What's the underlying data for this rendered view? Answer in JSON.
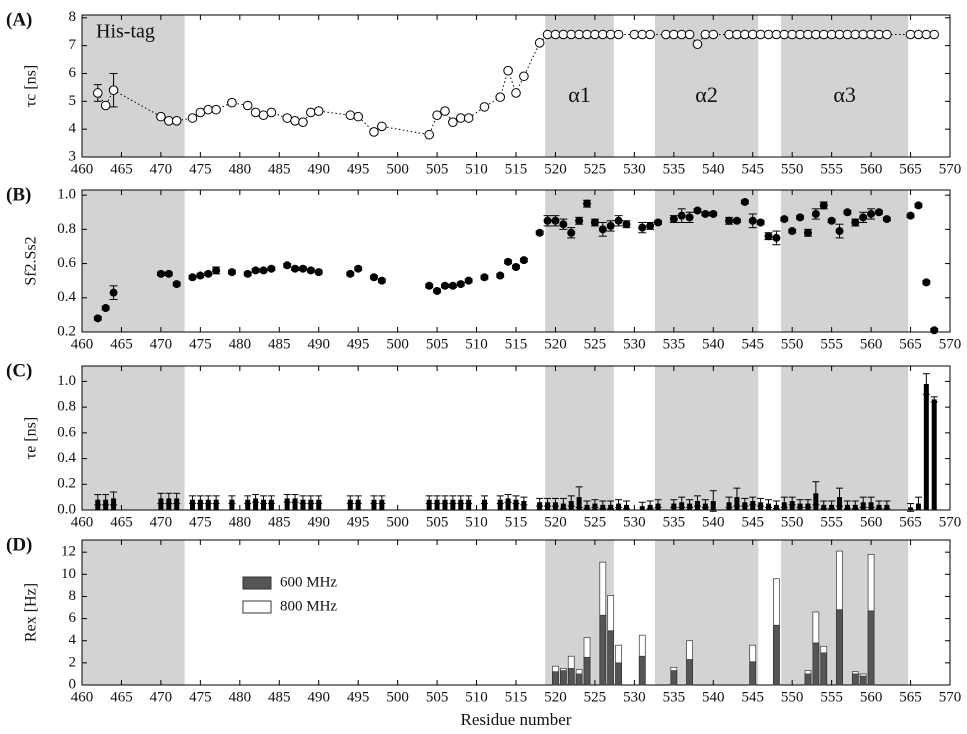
{
  "chart_data": [
    {
      "type": "line",
      "panel_label": "(A)",
      "y_label": "τc [ns]",
      "shaded_regions": [
        [
          460,
          473
        ],
        [
          518.7,
          527.4
        ],
        [
          532.6,
          545.7
        ],
        [
          548.6,
          564.7
        ]
      ],
      "region_labels": [
        "His-tag",
        "α1",
        "α2",
        "α3"
      ],
      "xlim": [
        460,
        570
      ],
      "xticks": [
        460,
        465,
        470,
        475,
        480,
        485,
        490,
        495,
        500,
        505,
        510,
        515,
        520,
        525,
        530,
        535,
        540,
        545,
        550,
        555,
        560,
        565,
        570
      ],
      "ylim": [
        3,
        8.1
      ],
      "yticks": [
        3,
        4,
        5,
        6,
        7,
        8
      ],
      "x": [
        462,
        463,
        464,
        470,
        471,
        472,
        474,
        475,
        476,
        477,
        479,
        481,
        482,
        483,
        484,
        486,
        487,
        488,
        489,
        490,
        494,
        495,
        497,
        498,
        504,
        505,
        506,
        507,
        508,
        509,
        511,
        513,
        514,
        515,
        516,
        518,
        519,
        520,
        521,
        522,
        523,
        524,
        525,
        526,
        527,
        528,
        530,
        531,
        532,
        534,
        535,
        536,
        537,
        538,
        539,
        540,
        542,
        543,
        544,
        545,
        546,
        547,
        548,
        549,
        550,
        551,
        552,
        553,
        554,
        555,
        556,
        557,
        558,
        559,
        560,
        561,
        562,
        565,
        566,
        567,
        568
      ],
      "values": [
        5.3,
        4.85,
        5.4,
        4.45,
        4.3,
        4.3,
        4.4,
        4.6,
        4.7,
        4.7,
        4.95,
        4.85,
        4.6,
        4.5,
        4.6,
        4.4,
        4.3,
        4.25,
        4.6,
        4.65,
        4.5,
        4.45,
        3.9,
        4.1,
        3.8,
        4.5,
        4.65,
        4.25,
        4.4,
        4.4,
        4.8,
        5.15,
        6.1,
        5.3,
        5.9,
        7.1,
        7.4,
        7.4,
        7.4,
        7.4,
        7.4,
        7.4,
        7.4,
        7.4,
        7.4,
        7.4,
        7.4,
        7.4,
        7.4,
        7.4,
        7.4,
        7.4,
        7.4,
        7.05,
        7.4,
        7.4,
        7.4,
        7.4,
        7.4,
        7.4,
        7.4,
        7.4,
        7.4,
        7.4,
        7.4,
        7.4,
        7.4,
        7.4,
        7.4,
        7.4,
        7.4,
        7.4,
        7.4,
        7.4,
        7.4,
        7.4,
        7.4,
        7.4,
        7.4,
        7.4,
        7.4
      ],
      "errors": [
        0.3,
        null,
        0.6,
        null,
        null,
        null,
        null,
        null,
        null,
        null,
        null,
        null,
        null,
        null,
        null,
        null,
        null,
        null,
        null,
        null,
        null,
        null,
        null,
        null,
        null,
        null,
        null,
        null,
        null,
        null,
        null,
        null,
        null,
        null,
        null,
        null,
        null,
        null,
        null,
        null,
        null,
        null,
        null,
        null,
        null,
        null,
        null,
        null,
        null,
        null,
        null,
        null,
        null,
        null,
        null,
        null,
        null,
        null,
        null,
        null,
        null,
        null,
        null,
        null,
        null,
        null,
        null,
        null,
        null,
        null,
        null,
        null,
        null,
        null,
        null,
        null,
        null,
        null,
        null,
        null,
        null
      ]
    },
    {
      "type": "scatter",
      "panel_label": "(B)",
      "y_label": "Sf2.Ss2",
      "shaded_regions": [
        [
          460,
          473
        ],
        [
          518.7,
          527.4
        ],
        [
          532.6,
          545.7
        ],
        [
          548.6,
          564.7
        ]
      ],
      "xlim": [
        460,
        570
      ],
      "xticks": [
        460,
        465,
        470,
        475,
        480,
        485,
        490,
        495,
        500,
        505,
        510,
        515,
        520,
        525,
        530,
        535,
        540,
        545,
        550,
        555,
        560,
        565,
        570
      ],
      "ylim": [
        0.2,
        1.03
      ],
      "yticks": [
        0.2,
        0.4,
        0.6,
        0.8,
        {
          "value": 1,
          "label": "1.0"
        }
      ],
      "x": [
        462,
        463,
        464,
        470,
        471,
        472,
        474,
        475,
        476,
        477,
        479,
        481,
        482,
        483,
        484,
        486,
        487,
        488,
        489,
        490,
        494,
        495,
        497,
        498,
        504,
        505,
        506,
        507,
        508,
        509,
        511,
        513,
        514,
        515,
        516,
        518,
        519,
        520,
        521,
        522,
        523,
        524,
        525,
        526,
        527,
        528,
        529,
        531,
        532,
        533,
        535,
        536,
        537,
        538,
        539,
        540,
        542,
        543,
        544,
        545,
        546,
        547,
        548,
        549,
        550,
        551,
        552,
        553,
        554,
        555,
        556,
        557,
        558,
        559,
        560,
        561,
        562,
        565,
        566,
        567,
        568
      ],
      "values": [
        0.28,
        0.34,
        0.43,
        0.54,
        0.54,
        0.48,
        0.52,
        0.53,
        0.54,
        0.56,
        0.55,
        0.54,
        0.56,
        0.56,
        0.57,
        0.59,
        0.57,
        0.57,
        0.56,
        0.55,
        0.54,
        0.57,
        0.52,
        0.5,
        0.47,
        0.44,
        0.47,
        0.47,
        0.48,
        0.5,
        0.52,
        0.53,
        0.61,
        0.58,
        0.62,
        0.78,
        0.85,
        0.85,
        0.83,
        0.78,
        0.85,
        0.95,
        0.84,
        0.8,
        0.82,
        0.85,
        0.83,
        0.81,
        0.82,
        0.84,
        0.86,
        0.88,
        0.87,
        0.91,
        0.89,
        0.89,
        0.85,
        0.85,
        0.96,
        0.85,
        0.84,
        0.76,
        0.75,
        0.86,
        0.79,
        0.87,
        0.78,
        0.89,
        0.94,
        0.85,
        0.79,
        0.9,
        0.84,
        0.87,
        0.89,
        0.9,
        0.86,
        0.88,
        0.94,
        0.49,
        0.21
      ],
      "errors": [
        0.01,
        0.01,
        0.04,
        0.01,
        0.01,
        0.01,
        0.01,
        0.01,
        0.01,
        0.02,
        0.01,
        0.01,
        0.01,
        0.01,
        0.01,
        0.01,
        0.01,
        0.01,
        0.01,
        0.01,
        0.01,
        0.01,
        0.01,
        0.01,
        0.01,
        0.01,
        0.01,
        0.01,
        0.01,
        0.01,
        0.01,
        0.01,
        0.01,
        0.01,
        0.01,
        0.01,
        0.03,
        0.03,
        0.03,
        0.03,
        0.02,
        0.02,
        0.02,
        0.04,
        0.03,
        0.03,
        0.02,
        0.03,
        0.02,
        0.01,
        0.02,
        0.04,
        0.03,
        0.01,
        0.01,
        0.01,
        0.02,
        0.01,
        0.01,
        0.04,
        0.01,
        0.02,
        0.04,
        0.01,
        0.01,
        0.01,
        0.02,
        0.03,
        0.02,
        0.01,
        0.04,
        0.01,
        0.02,
        0.03,
        0.03,
        0.01,
        0.01,
        0.01,
        0.01,
        0.01,
        0.01
      ]
    },
    {
      "type": "bar",
      "panel_label": "(C)",
      "y_label": "τe [ns]",
      "shaded_regions": [
        [
          460,
          473
        ],
        [
          518.7,
          527.4
        ],
        [
          532.6,
          545.7
        ],
        [
          548.6,
          564.7
        ]
      ],
      "xlim": [
        460,
        570
      ],
      "xticks": [
        460,
        465,
        470,
        475,
        480,
        485,
        490,
        495,
        500,
        505,
        510,
        515,
        520,
        525,
        530,
        535,
        540,
        545,
        550,
        555,
        560,
        565,
        570
      ],
      "ylim": [
        0,
        1.12
      ],
      "yticks": [
        {
          "value": 0,
          "label": "0.0"
        },
        0.2,
        0.4,
        0.6,
        0.8,
        {
          "value": 1,
          "label": "1.0"
        }
      ],
      "x": [
        462,
        463,
        464,
        470,
        471,
        472,
        474,
        475,
        476,
        477,
        479,
        481,
        482,
        483,
        484,
        486,
        487,
        488,
        489,
        490,
        494,
        495,
        497,
        498,
        504,
        505,
        506,
        507,
        508,
        509,
        511,
        513,
        514,
        515,
        516,
        518,
        519,
        520,
        521,
        522,
        523,
        524,
        525,
        526,
        527,
        528,
        529,
        531,
        532,
        533,
        535,
        536,
        537,
        538,
        539,
        540,
        542,
        543,
        544,
        545,
        546,
        547,
        548,
        549,
        550,
        551,
        552,
        553,
        554,
        555,
        556,
        557,
        558,
        559,
        560,
        561,
        562,
        565,
        566,
        567,
        568
      ],
      "values": [
        0.08,
        0.08,
        0.09,
        0.09,
        0.09,
        0.09,
        0.08,
        0.08,
        0.08,
        0.08,
        0.08,
        0.08,
        0.09,
        0.08,
        0.08,
        0.09,
        0.09,
        0.08,
        0.08,
        0.08,
        0.08,
        0.08,
        0.08,
        0.08,
        0.08,
        0.08,
        0.08,
        0.08,
        0.08,
        0.08,
        0.08,
        0.08,
        0.09,
        0.08,
        0.07,
        0.06,
        0.06,
        0.06,
        0.05,
        0.07,
        0.1,
        0.04,
        0.05,
        0.04,
        0.04,
        0.05,
        0.04,
        0.03,
        0.04,
        0.05,
        0.05,
        0.06,
        0.05,
        0.07,
        0.05,
        0.07,
        0.06,
        0.1,
        0.06,
        0.07,
        0.06,
        0.05,
        0.04,
        0.06,
        0.07,
        0.05,
        0.05,
        0.13,
        0.04,
        0.04,
        0.1,
        0.04,
        0.04,
        0.06,
        0.06,
        0.04,
        0.04,
        0.02,
        0.05,
        0.98,
        0.86
      ],
      "errors": [
        0.04,
        0.04,
        0.05,
        0.04,
        0.04,
        0.04,
        0.03,
        0.03,
        0.03,
        0.03,
        0.03,
        0.03,
        0.03,
        0.03,
        0.03,
        0.03,
        0.03,
        0.03,
        0.03,
        0.03,
        0.03,
        0.03,
        0.03,
        0.03,
        0.03,
        0.03,
        0.03,
        0.03,
        0.03,
        0.03,
        0.03,
        0.03,
        0.03,
        0.03,
        0.03,
        0.03,
        0.03,
        0.03,
        0.04,
        0.04,
        0.08,
        0.03,
        0.03,
        0.03,
        0.03,
        0.03,
        0.03,
        0.03,
        0.03,
        0.03,
        0.03,
        0.04,
        0.03,
        0.04,
        0.03,
        0.08,
        0.04,
        0.07,
        0.03,
        0.03,
        0.03,
        0.03,
        0.03,
        0.04,
        0.03,
        0.03,
        0.03,
        0.09,
        0.03,
        0.03,
        0.07,
        0.03,
        0.03,
        0.04,
        0.04,
        0.03,
        0.03,
        0.03,
        0.05,
        0.08,
        0.02
      ]
    },
    {
      "type": "bar",
      "panel_label": "(D)",
      "y_label": "Rex [Hz]",
      "x_label": "Residue number",
      "shaded_regions": [
        [
          460,
          473
        ],
        [
          518.7,
          527.4
        ],
        [
          532.6,
          545.7
        ],
        [
          548.6,
          564.7
        ]
      ],
      "xlim": [
        460,
        570
      ],
      "xticks": [
        460,
        465,
        470,
        475,
        480,
        485,
        490,
        495,
        500,
        505,
        510,
        515,
        520,
        525,
        530,
        535,
        540,
        545,
        550,
        555,
        560,
        565,
        570
      ],
      "ylim": [
        0,
        13.1
      ],
      "yticks": [
        0,
        2,
        4,
        6,
        8,
        10,
        12
      ],
      "x": [
        520,
        521,
        522,
        523,
        524,
        526,
        527,
        528,
        531,
        535,
        537,
        545,
        548,
        552,
        553,
        554,
        556,
        558,
        559,
        560
      ],
      "series": [
        {
          "name": "600 MHz",
          "color": "#555555",
          "values": [
            1.2,
            1.3,
            1.5,
            1.0,
            2.5,
            6.3,
            4.9,
            2.0,
            2.6,
            1.3,
            2.3,
            2.1,
            5.4,
            1.0,
            3.8,
            2.9,
            6.8,
            1.0,
            0.8,
            6.7
          ]
        },
        {
          "name": "800 MHz",
          "color": "#ffffff",
          "values": [
            1.7,
            1.5,
            2.6,
            1.4,
            4.3,
            11.1,
            8.1,
            3.6,
            4.5,
            1.6,
            4.0,
            3.6,
            9.6,
            1.3,
            6.6,
            3.5,
            12.1,
            1.2,
            1.0,
            11.8
          ]
        }
      ]
    }
  ]
}
